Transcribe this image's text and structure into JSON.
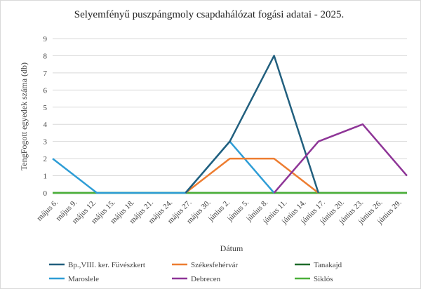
{
  "chart_data": {
    "type": "line",
    "title": "Selyemfényű puszpángmoly csapdahálózat fogási adatai - 2025.",
    "xlabel": "Dátum",
    "ylabel": "TengFogott egyedek száma (db)",
    "ylim": [
      0,
      9
    ],
    "y_ticks": [
      "0",
      "1",
      "2",
      "3",
      "4",
      "5",
      "6",
      "7",
      "8",
      "9"
    ],
    "grid": "horizontal",
    "legend_position": "bottom",
    "categories": [
      "május 6.",
      "május 9.",
      "május 12.",
      "május 15.",
      "május 18.",
      "május 21.",
      "május 24.",
      "május 27.",
      "május 30.",
      "június 2.",
      "június 5.",
      "június 8.",
      "június 11.",
      "június 14.",
      "június 17.",
      "június 20.",
      "június 23.",
      "június 26.",
      "június 29."
    ],
    "series": [
      {
        "name": "Bp.,VIII. ker. Füvészkert",
        "color": "#215f7e",
        "points": [
          [
            9,
            0
          ],
          [
            12,
            3
          ],
          [
            15,
            8
          ],
          [
            18,
            0
          ]
        ]
      },
      {
        "name": "Székesfehérvár",
        "color": "#ed7d31",
        "points": [
          [
            9,
            0
          ],
          [
            12,
            2
          ],
          [
            15,
            2
          ],
          [
            18,
            0
          ]
        ]
      },
      {
        "name": "Tanakajd",
        "color": "#1e6b2a",
        "points": [
          [
            0,
            0
          ],
          [
            24,
            0
          ]
        ]
      },
      {
        "name": "Maroslele",
        "color": "#2e9dd6",
        "points": [
          [
            0,
            2
          ],
          [
            3,
            0
          ],
          [
            9,
            0
          ],
          [
            12,
            3
          ],
          [
            15,
            0
          ]
        ]
      },
      {
        "name": "Debrecen",
        "color": "#8e3597",
        "points": [
          [
            15,
            0
          ],
          [
            18,
            3
          ],
          [
            21,
            4
          ],
          [
            24,
            1
          ]
        ]
      },
      {
        "name": "Siklós",
        "color": "#4caf3a",
        "points": [
          [
            0,
            0
          ],
          [
            24,
            0
          ]
        ]
      }
    ]
  }
}
